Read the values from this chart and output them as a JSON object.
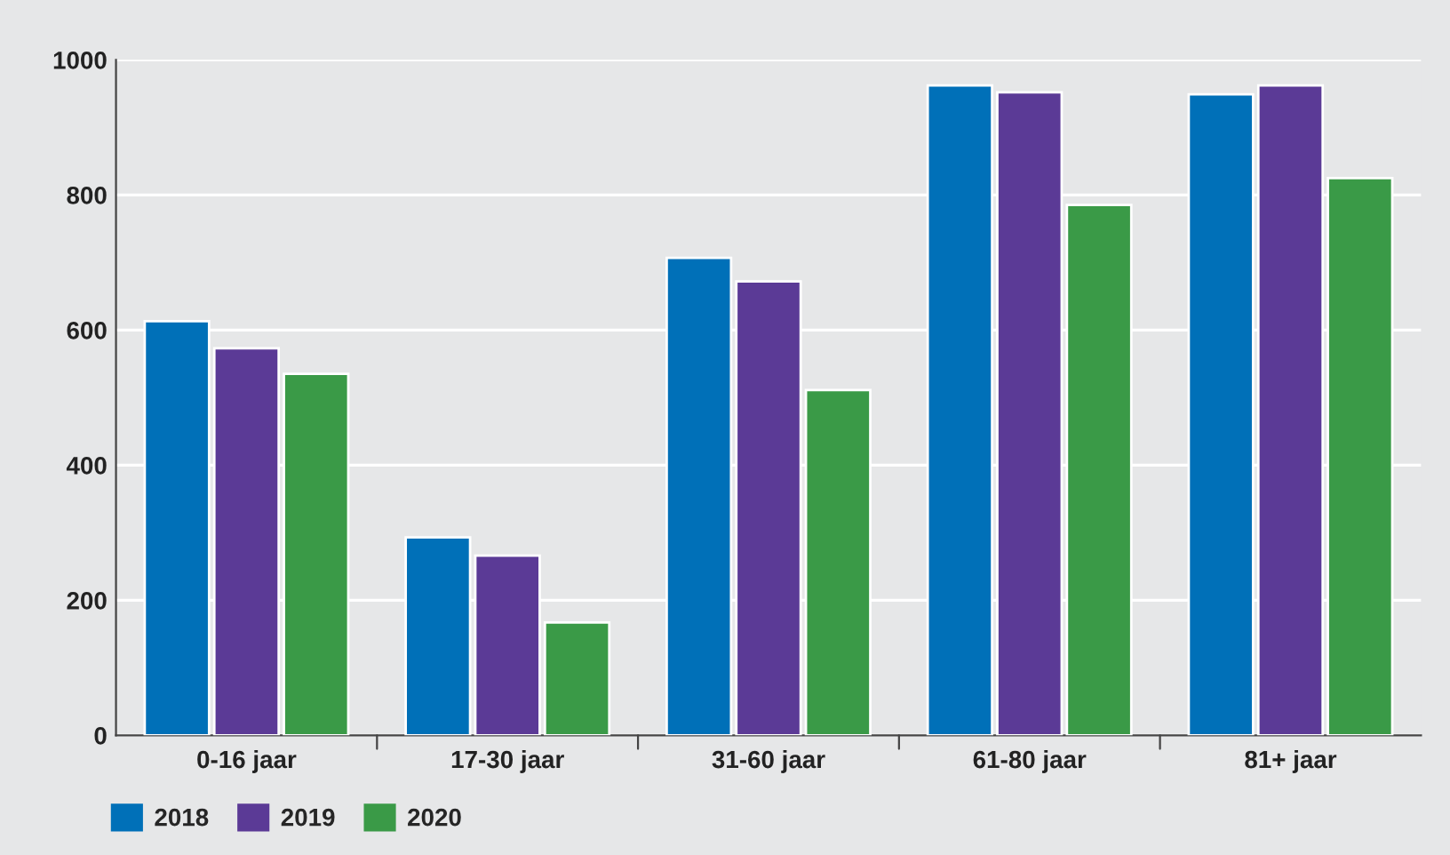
{
  "chart_data": {
    "type": "bar",
    "categories": [
      "0-16 jaar",
      "17-30 jaar",
      "31-60 jaar",
      "61-80 jaar",
      "81+ jaar"
    ],
    "series": [
      {
        "name": "2018",
        "color": "#0070b8",
        "values": [
          613,
          293,
          707,
          962,
          949
        ]
      },
      {
        "name": "2019",
        "color": "#5b3a96",
        "values": [
          573,
          266,
          672,
          952,
          962
        ]
      },
      {
        "name": "2020",
        "color": "#3a9a47",
        "values": [
          535,
          167,
          511,
          785,
          825
        ]
      }
    ],
    "ylim": [
      0,
      1000
    ],
    "yticks": [
      0,
      200,
      400,
      600,
      800,
      1000
    ],
    "grid": "y",
    "legend": "bottom left"
  }
}
